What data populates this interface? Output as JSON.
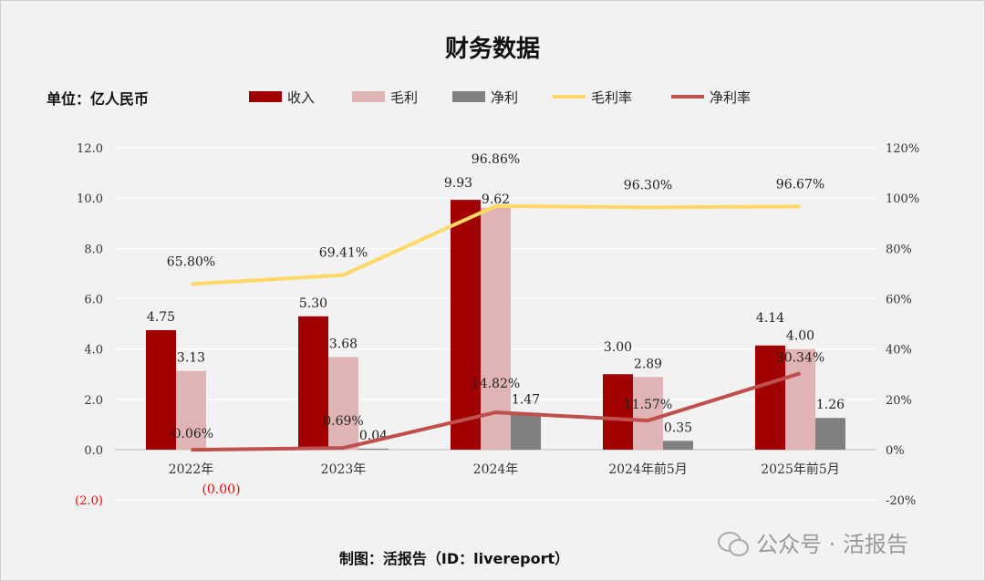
{
  "chart_data": {
    "type": "bar+line",
    "title": "财务数据",
    "unit_label": "单位：亿人民币",
    "categories": [
      "2022年",
      "2023年",
      "2024年",
      "2024年前5月",
      "2025年前5月"
    ],
    "series": [
      {
        "name": "收入",
        "type": "bar",
        "axis": "left",
        "color": "#a00000",
        "values": [
          4.75,
          5.3,
          9.93,
          3.0,
          4.14
        ],
        "labels": [
          "4.75",
          "5.30",
          "9.93",
          "3.00",
          "4.14"
        ]
      },
      {
        "name": "毛利",
        "type": "bar",
        "axis": "left",
        "color": "#e0b4b4",
        "values": [
          3.13,
          3.68,
          9.62,
          2.89,
          4.0
        ],
        "labels": [
          "3.13",
          "3.68",
          "9.62",
          "2.89",
          "4.00"
        ]
      },
      {
        "name": "净利",
        "type": "bar",
        "axis": "left",
        "color": "#808080",
        "values": [
          -0.003,
          0.04,
          1.47,
          0.35,
          1.26
        ],
        "labels": [
          "(0.00)",
          "0.04",
          "1.47",
          "0.35",
          "1.26"
        ]
      },
      {
        "name": "毛利率",
        "type": "line",
        "axis": "right",
        "color": "#ffd966",
        "values": [
          65.8,
          69.41,
          96.86,
          96.3,
          96.67
        ],
        "labels": [
          "65.80%",
          "69.41%",
          "96.86%",
          "96.30%",
          "96.67%"
        ]
      },
      {
        "name": "净利率",
        "type": "line",
        "axis": "right",
        "color": "#c0504d",
        "values": [
          -0.06,
          0.69,
          14.82,
          11.57,
          30.34
        ],
        "labels": [
          "-0.06%",
          "0.69%",
          "14.82%",
          "11.57%",
          "30.34%"
        ]
      }
    ],
    "left_axis": {
      "range": [
        -2,
        12
      ],
      "ticks": [
        "(2.0)",
        "0.0",
        "2.0",
        "4.0",
        "6.0",
        "8.0",
        "10.0",
        "12.0"
      ],
      "tick_values": [
        -2,
        0,
        2,
        4,
        6,
        8,
        10,
        12
      ]
    },
    "right_axis": {
      "range": [
        -20,
        120
      ],
      "ticks": [
        "-20%",
        "0%",
        "20%",
        "40%",
        "60%",
        "80%",
        "100%",
        "120%"
      ],
      "tick_values": [
        -20,
        0,
        20,
        40,
        60,
        80,
        100,
        120
      ]
    },
    "grid": true,
    "legend": "top"
  },
  "footer": "制图：活报告（ID：livereport）",
  "watermark": "公众号 · 活报告"
}
